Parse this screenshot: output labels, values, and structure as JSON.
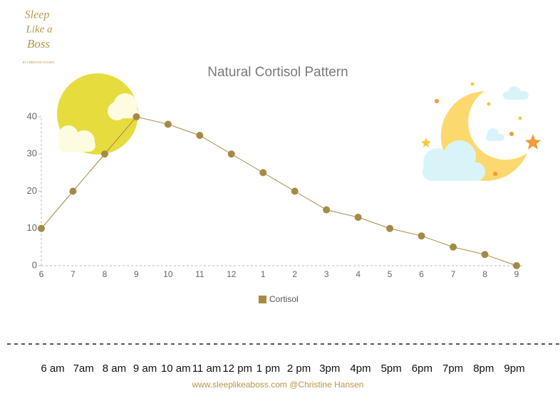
{
  "logo": {
    "lines": [
      "Sleep",
      "Like a",
      "Boss"
    ],
    "byline": "BY CHRISTINE HANSEN"
  },
  "chart_data": {
    "type": "line",
    "title": "Natural Cortisol Pattern",
    "categories": [
      "6",
      "7",
      "8",
      "9",
      "10",
      "11",
      "12",
      "1",
      "2",
      "3",
      "4",
      "5",
      "6",
      "7",
      "8",
      "9"
    ],
    "series": [
      {
        "name": "Cortisol",
        "color": "#a68a44",
        "values": [
          10,
          20,
          30,
          40,
          38,
          35,
          30,
          25,
          20,
          15,
          13,
          10,
          8,
          5,
          3,
          0
        ]
      }
    ],
    "ylim": [
      0,
      40
    ],
    "yticks": [
      0,
      10,
      20,
      30,
      40
    ],
    "legend": "bottom"
  },
  "footer": {
    "time_labels": [
      "6 am",
      "7am",
      "8 am",
      "9 am",
      "10 am",
      "11 am",
      "12 pm",
      "1 pm",
      "2 pm",
      "3pm",
      "4pm",
      "5pm",
      "6pm",
      "7pm",
      "8pm",
      "9pm"
    ],
    "credit": "www.sleeplikeaboss.com @Christine Hansen"
  }
}
